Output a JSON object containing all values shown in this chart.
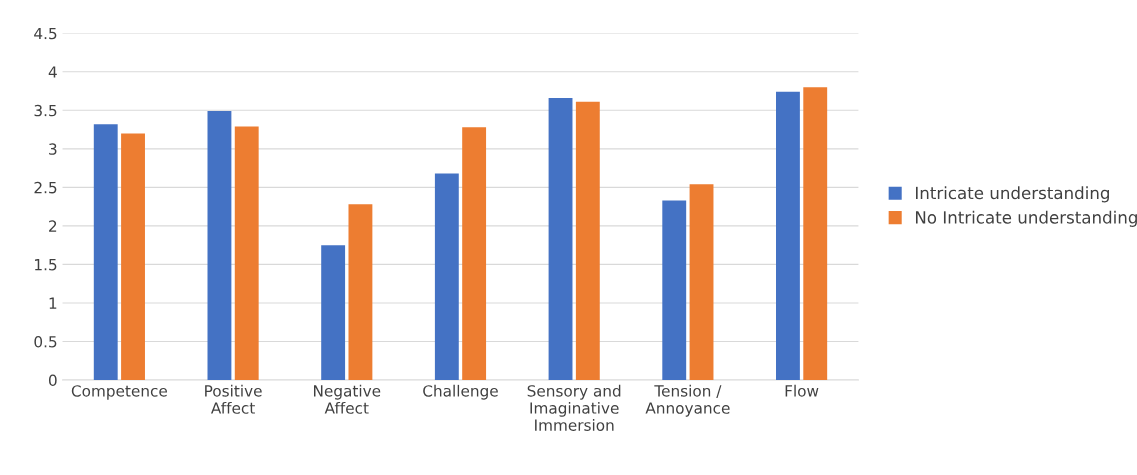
{
  "chart_data": {
    "type": "bar",
    "categories": [
      "Competence",
      "Positive\nAffect",
      "Negative\nAffect",
      "Challenge",
      "Sensory and\nImaginative\nImmersion",
      "Tension /\nAnnoyance",
      "Flow"
    ],
    "series": [
      {
        "name": "Intricate understanding",
        "color": "#4472c4",
        "values": [
          3.32,
          3.49,
          1.75,
          2.68,
          3.66,
          2.33,
          3.74
        ]
      },
      {
        "name": "No Intricate understanding",
        "color": "#ed7d31",
        "values": [
          3.2,
          3.29,
          2.28,
          3.28,
          3.61,
          2.54,
          3.8
        ]
      }
    ],
    "ylim": [
      0,
      4.5
    ],
    "yticks": [
      0,
      0.5,
      1,
      1.5,
      2,
      2.5,
      3,
      3.5,
      4,
      4.5
    ],
    "grid": "y",
    "legend": "right"
  }
}
